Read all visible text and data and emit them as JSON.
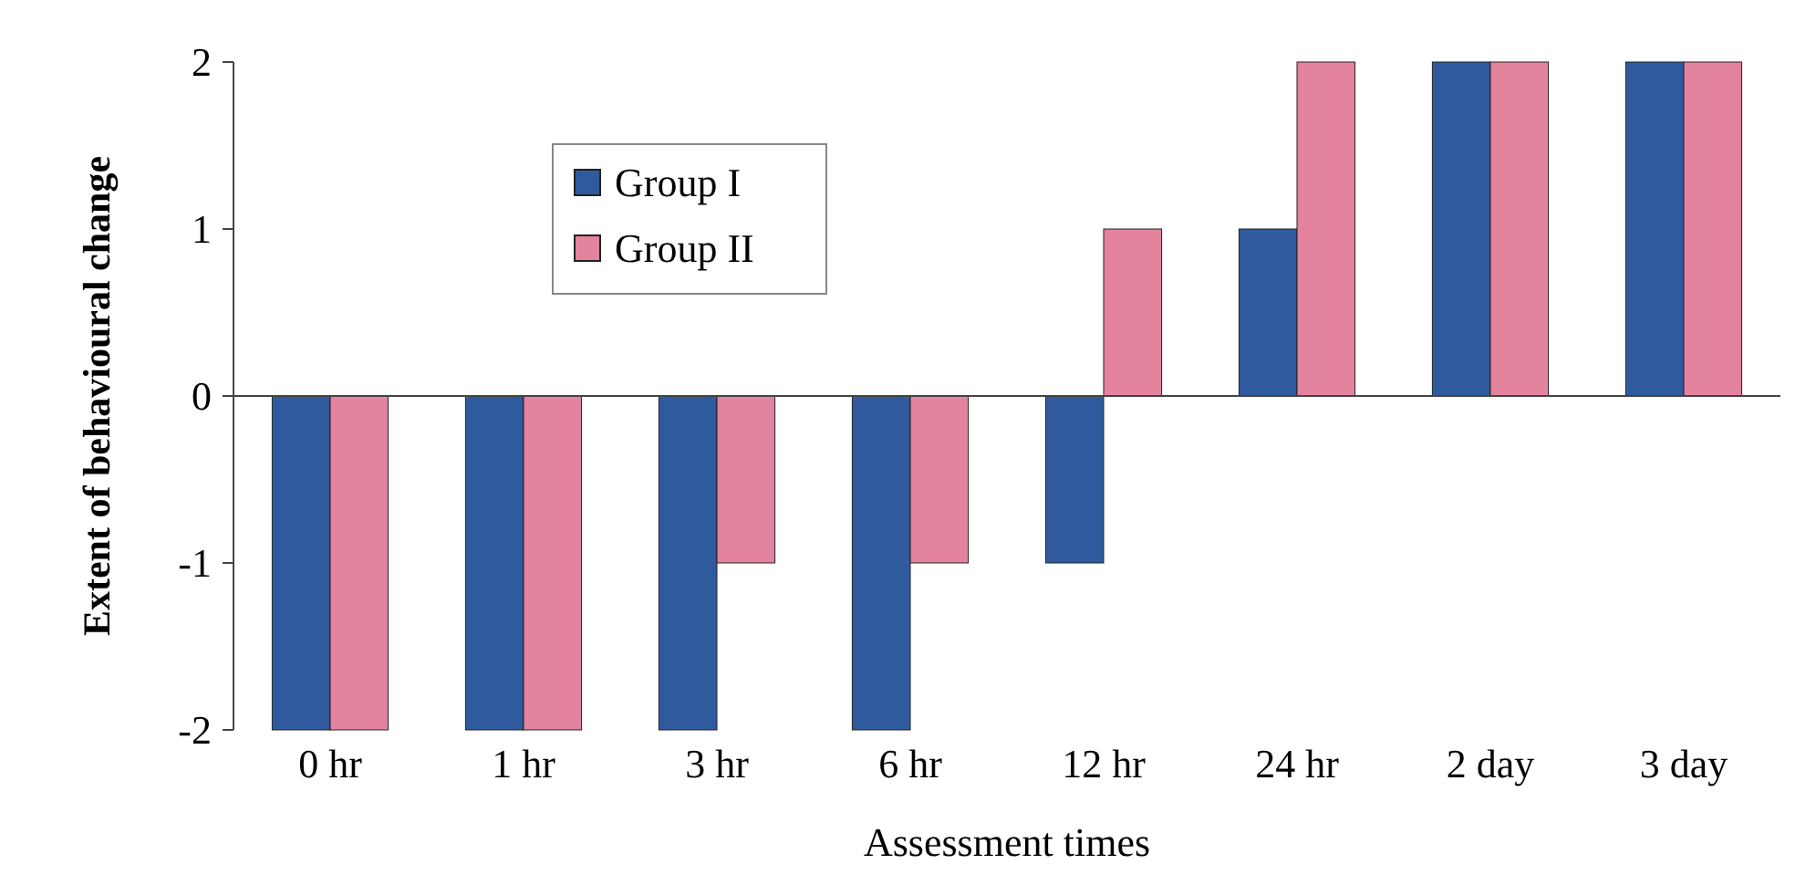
{
  "chart_data": {
    "type": "bar",
    "xlabel": "Assessment times",
    "ylabel": "Extent of behavioural change",
    "categories": [
      "0 hr",
      "1 hr",
      "3 hr",
      "6 hr",
      "12 hr",
      "24 hr",
      "2 day",
      "3 day"
    ],
    "series": [
      {
        "name": "Group I",
        "color": "#2f5b9e",
        "values": [
          -2,
          -2,
          -2,
          -2,
          -1,
          1,
          2,
          2
        ]
      },
      {
        "name": "Group II",
        "color": "#e3839d",
        "values": [
          -2,
          -2,
          -1,
          -1,
          1,
          2,
          2,
          2
        ]
      }
    ],
    "ylim": [
      -2,
      2
    ],
    "yticks": [
      -2,
      -1,
      0,
      1,
      2
    ],
    "legend": "top left"
  }
}
